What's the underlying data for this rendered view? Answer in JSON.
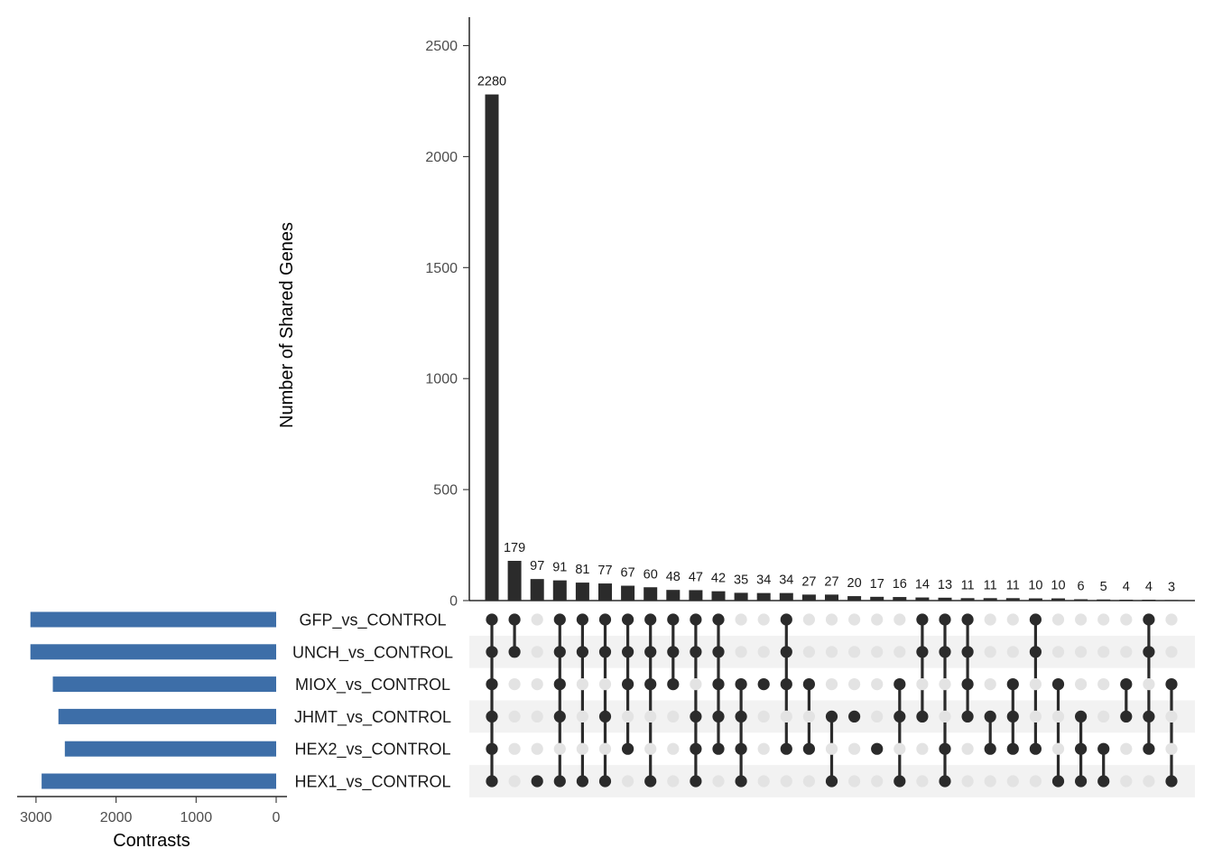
{
  "chart_data": {
    "type": "upset",
    "intersection_axis": {
      "ylabel": "Number of Shared Genes",
      "ylim": [
        0,
        2630
      ],
      "ticks": [
        0,
        500,
        1000,
        1500,
        2000,
        2500
      ],
      "tick_labels": [
        "0",
        "500",
        "1000",
        "1500",
        "2000",
        "2500"
      ]
    },
    "set_size_axis": {
      "xlabel": "Contrasts",
      "xlim": [
        3120,
        0
      ],
      "ticks": [
        3000,
        2000,
        1000,
        0
      ],
      "tick_labels": [
        "3000",
        "2000",
        "1000",
        "0"
      ]
    },
    "sets": [
      {
        "name": "GFP_vs_CONTROL",
        "size": 3070
      },
      {
        "name": "UNCH_vs_CONTROL",
        "size": 3070
      },
      {
        "name": "MIOX_vs_CONTROL",
        "size": 2790
      },
      {
        "name": "JHMT_vs_CONTROL",
        "size": 2720
      },
      {
        "name": "HEX2_vs_CONTROL",
        "size": 2640
      },
      {
        "name": "HEX1_vs_CONTROL",
        "size": 2930
      }
    ],
    "intersections": [
      {
        "value": 2280,
        "label": "2280",
        "members": [
          0,
          1,
          2,
          3,
          4,
          5
        ]
      },
      {
        "value": 179,
        "label": "179",
        "members": [
          0,
          1
        ]
      },
      {
        "value": 97,
        "label": "97",
        "members": [
          5
        ]
      },
      {
        "value": 91,
        "label": "91",
        "members": [
          0,
          1,
          2,
          3,
          5
        ]
      },
      {
        "value": 81,
        "label": "81",
        "members": [
          0,
          1,
          5
        ]
      },
      {
        "value": 77,
        "label": "77",
        "members": [
          0,
          1,
          3,
          5
        ]
      },
      {
        "value": 67,
        "label": "67",
        "members": [
          0,
          1,
          2,
          4
        ]
      },
      {
        "value": 60,
        "label": "60",
        "members": [
          0,
          1,
          2,
          5
        ]
      },
      {
        "value": 48,
        "label": "48",
        "members": [
          0,
          1,
          2
        ]
      },
      {
        "value": 47,
        "label": "47",
        "members": [
          0,
          1,
          3,
          4,
          5
        ]
      },
      {
        "value": 42,
        "label": "42",
        "members": [
          0,
          1,
          2,
          3,
          4
        ]
      },
      {
        "value": 35,
        "label": "35",
        "members": [
          2,
          3,
          4,
          5
        ]
      },
      {
        "value": 34,
        "label": "34",
        "members": [
          2
        ]
      },
      {
        "value": 34,
        "label": "34",
        "members": [
          0,
          1,
          2,
          4
        ]
      },
      {
        "value": 27,
        "label": "27",
        "members": [
          2,
          4
        ]
      },
      {
        "value": 27,
        "label": "27",
        "members": [
          3,
          5
        ]
      },
      {
        "value": 20,
        "label": "20",
        "members": [
          3
        ]
      },
      {
        "value": 17,
        "label": "17",
        "members": [
          4
        ]
      },
      {
        "value": 16,
        "label": "16",
        "members": [
          2,
          3,
          5
        ]
      },
      {
        "value": 14,
        "label": "14",
        "members": [
          0,
          1,
          3
        ]
      },
      {
        "value": 13,
        "label": "13",
        "members": [
          0,
          1,
          4,
          5
        ]
      },
      {
        "value": 11,
        "label": "11",
        "members": [
          0,
          1,
          2,
          3
        ]
      },
      {
        "value": 11,
        "label": "11",
        "members": [
          3,
          4
        ]
      },
      {
        "value": 11,
        "label": "11",
        "members": [
          2,
          3,
          4
        ]
      },
      {
        "value": 10,
        "label": "10",
        "members": [
          0,
          1,
          4
        ]
      },
      {
        "value": 10,
        "label": "10",
        "members": [
          2,
          5
        ]
      },
      {
        "value": 6,
        "label": "6",
        "members": [
          3,
          4,
          5
        ]
      },
      {
        "value": 5,
        "label": "5",
        "members": [
          4,
          5
        ]
      },
      {
        "value": 4,
        "label": "4",
        "members": [
          2,
          3
        ]
      },
      {
        "value": 4,
        "label": "4",
        "members": [
          0,
          1,
          3,
          4
        ]
      },
      {
        "value": 3,
        "label": "3",
        "members": [
          2,
          5
        ]
      }
    ],
    "colors": {
      "bar": "#2b2b2b",
      "set_bar": "#3d6ea8",
      "dot_active": "#2b2b2b",
      "dot_inactive": "#e3e3e3",
      "stripe": "#f2f2f2"
    }
  }
}
